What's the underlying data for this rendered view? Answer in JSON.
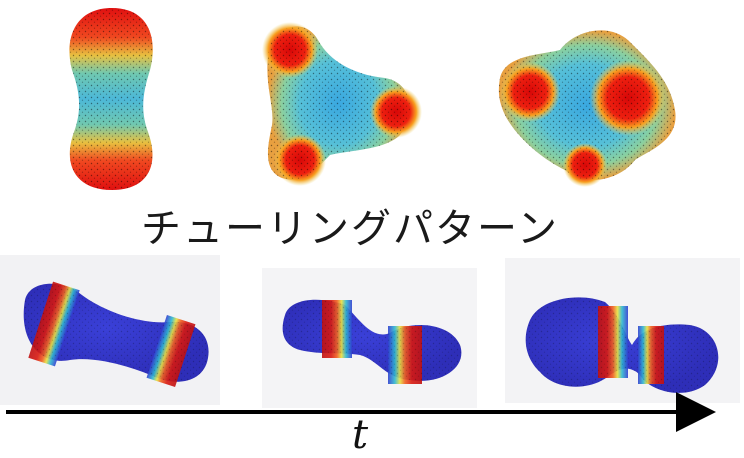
{
  "caption": "チューリングパターン",
  "time_label": "t",
  "colors": {
    "hot": "#e01010",
    "mid": "#60c8d8",
    "cold": "#3a3ccf",
    "axis": "#000000"
  }
}
